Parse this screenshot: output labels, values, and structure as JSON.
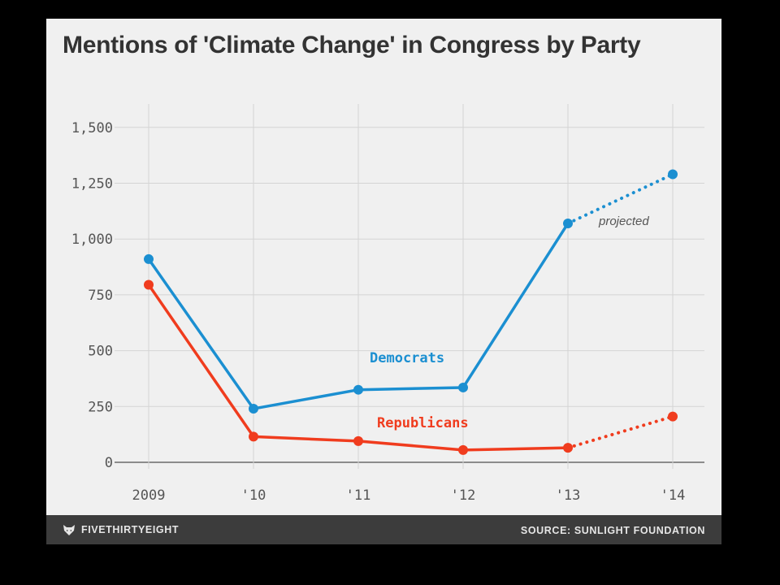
{
  "chart_data": {
    "type": "line",
    "title": "Mentions of 'Climate Change' in Congress by Party",
    "categories": [
      "2009",
      "'10",
      "'11",
      "'12",
      "'13",
      "'14"
    ],
    "x_tick_labels": [
      "2009",
      "'10",
      "'11",
      "'12",
      "'13",
      "'14"
    ],
    "y_tick_labels": [
      "1,500",
      "1,250",
      "1,000",
      "750",
      "500",
      "250",
      "0"
    ],
    "y_ticks": [
      1500,
      1250,
      1000,
      750,
      500,
      250,
      0
    ],
    "ylim": [
      0,
      1550
    ],
    "grid": true,
    "series": [
      {
        "name": "Democrats",
        "color": "#1b8fd1",
        "values": [
          910,
          240,
          325,
          335,
          1070,
          1290
        ],
        "projected_from_index": 4
      },
      {
        "name": "Republicans",
        "color": "#f03c1e",
        "values": [
          795,
          115,
          95,
          55,
          65,
          205
        ],
        "projected_from_index": 4
      }
    ],
    "annotations": [
      {
        "text": "projected"
      }
    ]
  },
  "footer": {
    "brand": "FIVETHIRTYEIGHT",
    "brand_icon": "fox-icon",
    "source": "SOURCE: SUNLIGHT FOUNDATION"
  }
}
